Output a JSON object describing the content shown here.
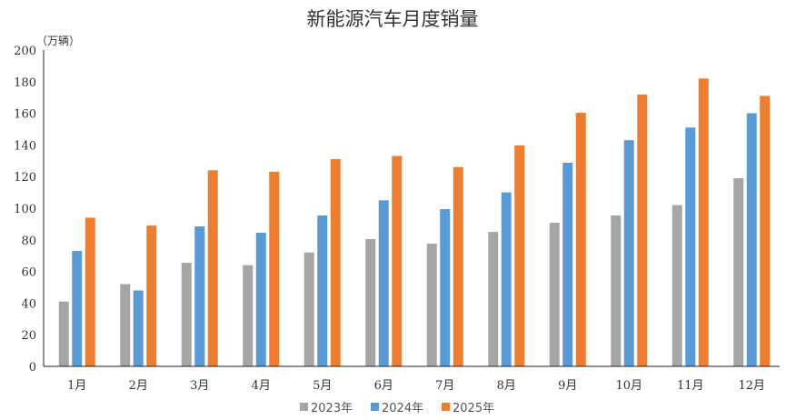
{
  "chart_data": {
    "type": "bar",
    "title": "新能源汽车月度销量",
    "ylabel": "（万辆）",
    "xlabel": "",
    "ylim": [
      0,
      200
    ],
    "yticks": [
      0,
      20,
      40,
      60,
      80,
      100,
      120,
      140,
      160,
      180,
      200
    ],
    "grid": false,
    "legend_position": "bottom",
    "categories": [
      "1月",
      "2月",
      "3月",
      "4月",
      "5月",
      "6月",
      "7月",
      "8月",
      "9月",
      "10月",
      "11月",
      "12月"
    ],
    "series": [
      {
        "name": "2023年",
        "color": "#A5A5A5",
        "values": [
          41,
          52,
          65.5,
          64,
          72,
          80.5,
          77.6,
          85,
          90.8,
          95.4,
          102,
          119
        ]
      },
      {
        "name": "2024年",
        "color": "#5B9BD5",
        "values": [
          73,
          48,
          88.5,
          84.5,
          95.4,
          105,
          99.4,
          110,
          128.7,
          143,
          151,
          160
        ]
      },
      {
        "name": "2025年",
        "color": "#ED7D31",
        "values": [
          94,
          89,
          124,
          123,
          131,
          133,
          126,
          139.7,
          160.3,
          171.8,
          182,
          171
        ]
      }
    ]
  }
}
